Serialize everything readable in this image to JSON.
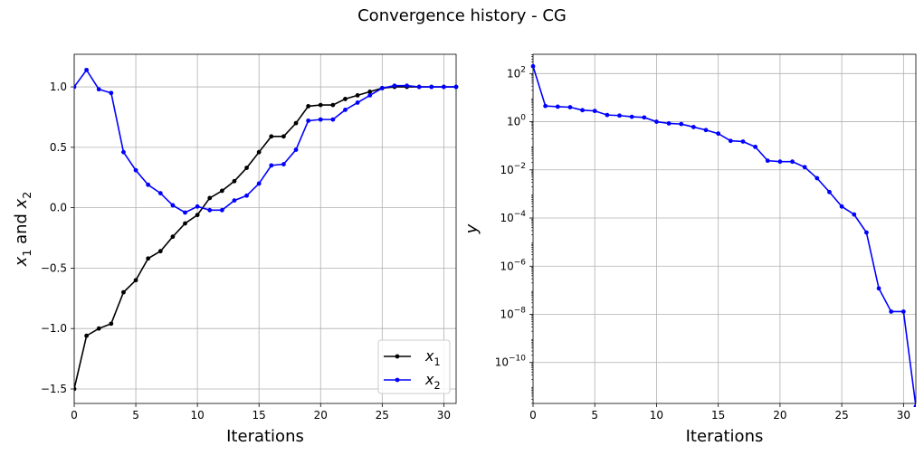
{
  "suptitle": "Convergence history - CG",
  "chart_data": [
    {
      "type": "line",
      "xlabel": "Iterations",
      "ylabel": "x1 and x2",
      "xlim": [
        0,
        31
      ],
      "ylim": [
        -1.62,
        1.27
      ],
      "xticks": [
        0,
        5,
        10,
        15,
        20,
        25,
        30
      ],
      "yticks": [
        -1.5,
        -1.0,
        -0.5,
        0.0,
        0.5,
        1.0
      ],
      "grid": true,
      "legend": "lower right",
      "series": [
        {
          "name": "x1",
          "color": "#000000",
          "x": [
            0,
            1,
            2,
            3,
            4,
            5,
            6,
            7,
            8,
            9,
            10,
            11,
            12,
            13,
            14,
            15,
            16,
            17,
            18,
            19,
            20,
            21,
            22,
            23,
            24,
            25,
            26,
            27,
            28,
            29,
            30,
            31
          ],
          "values": [
            -1.5,
            -1.06,
            -1.0,
            -0.96,
            -0.7,
            -0.6,
            -0.42,
            -0.36,
            -0.24,
            -0.13,
            -0.06,
            0.08,
            0.14,
            0.22,
            0.33,
            0.46,
            0.59,
            0.59,
            0.7,
            0.84,
            0.85,
            0.85,
            0.9,
            0.93,
            0.96,
            0.99,
            1.0,
            1.0,
            1.0,
            1.0,
            1.0,
            1.0
          ]
        },
        {
          "name": "x2",
          "color": "#0000ff",
          "x": [
            0,
            1,
            2,
            3,
            4,
            5,
            6,
            7,
            8,
            9,
            10,
            11,
            12,
            13,
            14,
            15,
            16,
            17,
            18,
            19,
            20,
            21,
            22,
            23,
            24,
            25,
            26,
            27,
            28,
            29,
            30,
            31
          ],
          "values": [
            1.0,
            1.14,
            0.98,
            0.95,
            0.46,
            0.31,
            0.19,
            0.12,
            0.02,
            -0.04,
            0.01,
            -0.02,
            -0.02,
            0.06,
            0.1,
            0.2,
            0.35,
            0.36,
            0.48,
            0.72,
            0.73,
            0.73,
            0.81,
            0.87,
            0.93,
            0.99,
            1.01,
            1.01,
            1.0,
            1.0,
            1.0,
            1.0
          ]
        }
      ]
    },
    {
      "type": "line",
      "xlabel": "Iterations",
      "ylabel": "y",
      "yscale": "log",
      "xlim": [
        0,
        31
      ],
      "ylim_exponent": [
        -11.7,
        2.8
      ],
      "xticks": [
        0,
        5,
        10,
        15,
        20,
        25,
        30
      ],
      "ytick_exponents": [
        2,
        0,
        -2,
        -4,
        -6,
        -8,
        -10
      ],
      "grid": true,
      "series": [
        {
          "color": "#0000ff",
          "x": [
            0,
            1,
            2,
            3,
            4,
            5,
            6,
            7,
            8,
            9,
            10,
            11,
            12,
            13,
            14,
            15,
            16,
            17,
            18,
            19,
            20,
            21,
            22,
            23,
            24,
            25,
            26,
            27,
            28,
            29,
            30,
            31
          ],
          "values": [
            200,
            4.5,
            4.2,
            4.0,
            3.0,
            2.8,
            1.9,
            1.8,
            1.6,
            1.5,
            1.0,
            0.85,
            0.8,
            0.6,
            0.45,
            0.32,
            0.16,
            0.15,
            0.09,
            0.024,
            0.022,
            0.022,
            0.013,
            0.0045,
            0.0012,
            0.0003,
            0.00014,
            2.5e-05,
            1.2e-07,
            1.3e-08,
            1.3e-08,
            1.5e-12
          ]
        }
      ]
    }
  ]
}
